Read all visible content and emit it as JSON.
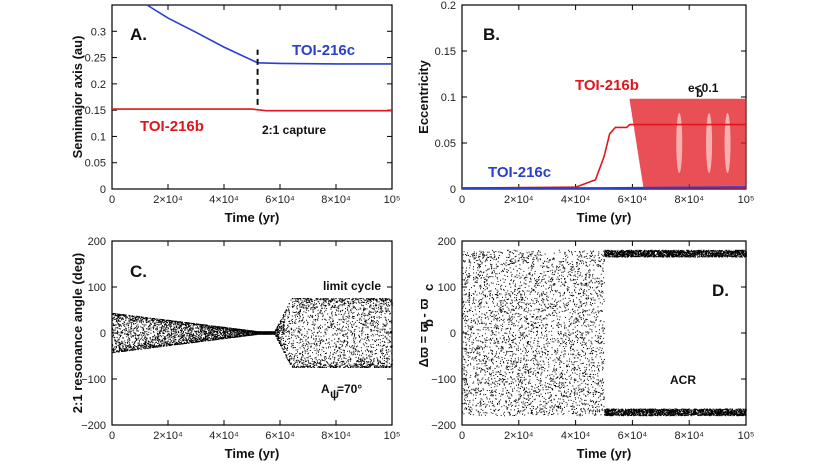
{
  "colors": {
    "red": "#e0161c",
    "blue": "#2a3fcf",
    "black": "#000000",
    "dash": "#111111"
  },
  "chart_data": [
    {
      "type": "line",
      "panel_label": "A.",
      "xlabel": "Time (yr)",
      "ylabel": "Semimajor axis (au)",
      "xlim": [
        0,
        100000
      ],
      "ylim": [
        0,
        0.35
      ],
      "xticks": [
        "0",
        "2×10⁴",
        "4×10⁴",
        "6×10⁴",
        "8×10⁴",
        "10⁵"
      ],
      "yticks": [
        "0",
        "0.05",
        "0.1",
        "0.15",
        "0.2",
        "0.25",
        "0.3"
      ],
      "series": [
        {
          "name": "TOI-216c",
          "color": "blue",
          "x": [
            12500,
            20000,
            30000,
            40000,
            52000,
            60000,
            80000,
            100000
          ],
          "y": [
            0.35,
            0.325,
            0.298,
            0.27,
            0.24,
            0.239,
            0.238,
            0.238
          ]
        },
        {
          "name": "TOI-216b",
          "color": "red",
          "x": [
            0,
            50000,
            55000,
            100000
          ],
          "y": [
            0.152,
            0.152,
            0.149,
            0.149
          ]
        }
      ],
      "annotations": {
        "capture_x": 52000,
        "capture_y_range": [
          0.16,
          0.265
        ],
        "capture_label": "2:1 capture",
        "label_c": "TOI-216c",
        "label_b": "TOI-216b"
      }
    },
    {
      "type": "line",
      "panel_label": "B.",
      "xlabel": "Time (yr)",
      "ylabel": "Eccentricity",
      "xlim": [
        0,
        100000
      ],
      "ylim": [
        0,
        0.2
      ],
      "xticks": [
        "0",
        "2×10⁴",
        "4×10⁴",
        "6×10⁴",
        "8×10⁴",
        "10⁵"
      ],
      "yticks": [
        "0",
        "0.05",
        "0.1",
        "0.15",
        "0.2"
      ],
      "series": [
        {
          "name": "TOI-216b",
          "color": "red",
          "x": [
            0,
            40000,
            47000,
            50000,
            52000,
            54000,
            58000,
            59000,
            100000
          ],
          "y": [
            0.001,
            0.002,
            0.01,
            0.035,
            0.06,
            0.067,
            0.067,
            0.07,
            0.07
          ],
          "band": {
            "x_start": 59000,
            "x_full": 64000,
            "x_end": 100000,
            "low": 0.0,
            "high": 0.098
          }
        },
        {
          "name": "TOI-216c",
          "color": "blue",
          "x": [
            0,
            50000,
            100000
          ],
          "y": [
            0.001,
            0.001,
            0.002
          ]
        }
      ],
      "annotations": {
        "label_b": "TOI-216b",
        "label_c": "TOI-216c",
        "limit_label": "e<0.1",
        "limit_sub": "b"
      }
    },
    {
      "type": "scatter",
      "panel_label": "C.",
      "xlabel": "Time (yr)",
      "ylabel": "2:1 resonance angle (deg)",
      "xlim": [
        0,
        100000
      ],
      "ylim": [
        -200,
        200
      ],
      "xticks": [
        "0",
        "2×10⁴",
        "4×10⁴",
        "6×10⁴",
        "8×10⁴",
        "10⁵"
      ],
      "yticks": [
        "−200",
        "−100",
        "0",
        "100",
        "200"
      ],
      "envelope": {
        "start_amp": 40,
        "decay_end_x": 52000,
        "flat_end_x": 58000,
        "grow_end_x": 64000,
        "final_amp": 75
      },
      "annotations": {
        "limit_label": "limit cycle",
        "amp_label": "A",
        "amp_sub": "ψ",
        "amp_value": "=70°"
      }
    },
    {
      "type": "scatter",
      "panel_label": "D.",
      "xlabel": "Time (yr)",
      "ylabel": "Δϖ = ϖ - ϖ",
      "ylabel_sub_b": "b",
      "ylabel_sub_c": "c",
      "xlim": [
        0,
        100000
      ],
      "ylim": [
        -200,
        200
      ],
      "xticks": [
        "0",
        "2×10⁴",
        "4×10⁴",
        "6×10⁴",
        "8×10⁴",
        "10⁵"
      ],
      "yticks": [
        "−200",
        "−100",
        "0",
        "100",
        "200"
      ],
      "regime": {
        "circulation_end_x": 50000,
        "band_center": 180,
        "band_half_width": 15
      },
      "annotations": {
        "acr_label": "ACR"
      }
    }
  ]
}
